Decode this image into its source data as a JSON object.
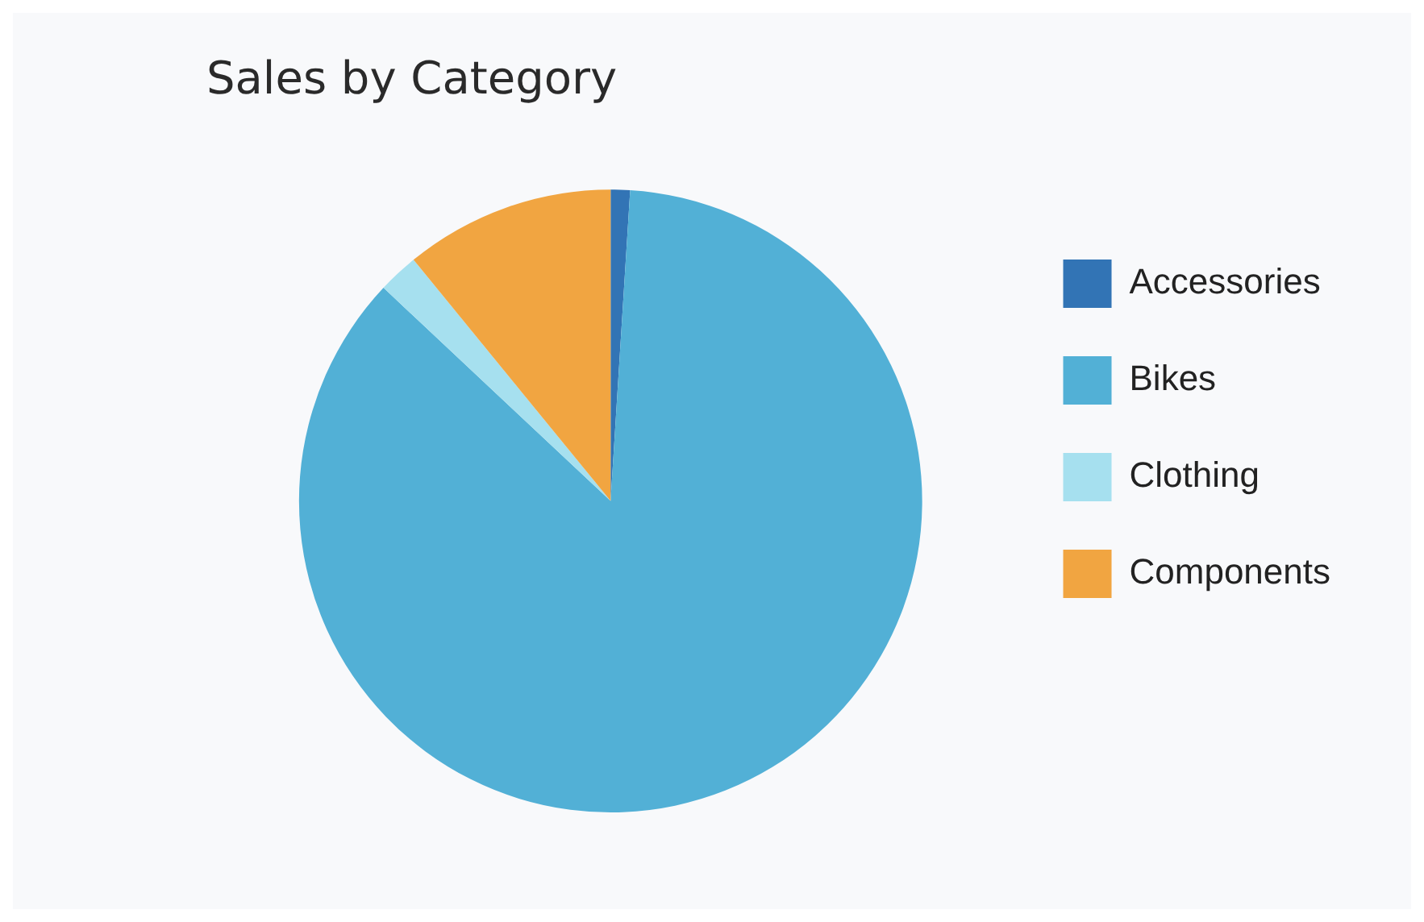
{
  "chart_data": {
    "type": "pie",
    "title": "Sales by Category",
    "categories": [
      "Accessories",
      "Bikes",
      "Clothing",
      "Components"
    ],
    "values": [
      1.0,
      86.0,
      2.1,
      10.9
    ],
    "colors": [
      "#3274b5",
      "#52b0d6",
      "#a6e0ef",
      "#f1a541"
    ],
    "legend": "right"
  }
}
